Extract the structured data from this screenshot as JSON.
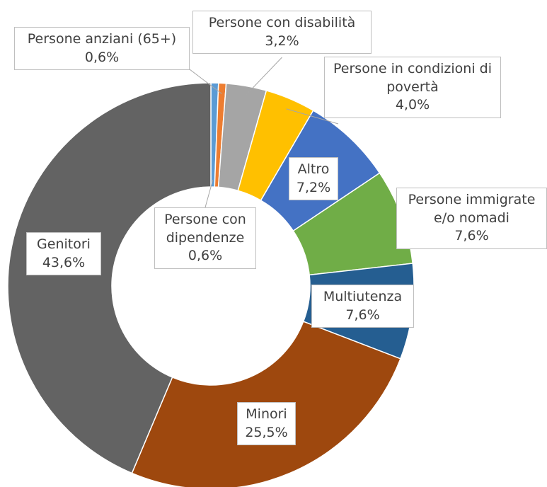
{
  "chart_data": {
    "type": "pie",
    "categories": [
      "Persone con dipendenze",
      "Persone anziani (65+)",
      "Persone con disabilità",
      "Persone in condizioni di povertà",
      "Altro",
      "Persone immigrate e/o nomadi",
      "Multiutenza",
      "Minori",
      "Genitori"
    ],
    "values": [
      0.6,
      0.6,
      3.2,
      4.0,
      7.2,
      7.6,
      7.6,
      25.5,
      43.6
    ],
    "value_labels": [
      "0,6%",
      "0,6%",
      "3,2%",
      "4,0%",
      "7,2%",
      "7,6%",
      "7,6%",
      "25,5%",
      "43,6%"
    ],
    "colors": [
      "#5b9bd5",
      "#ed7d31",
      "#a5a5a5",
      "#ffc000",
      "#4472c4",
      "#70ad47",
      "#255e91",
      "#9e480e",
      "#636363"
    ],
    "donut": true
  }
}
